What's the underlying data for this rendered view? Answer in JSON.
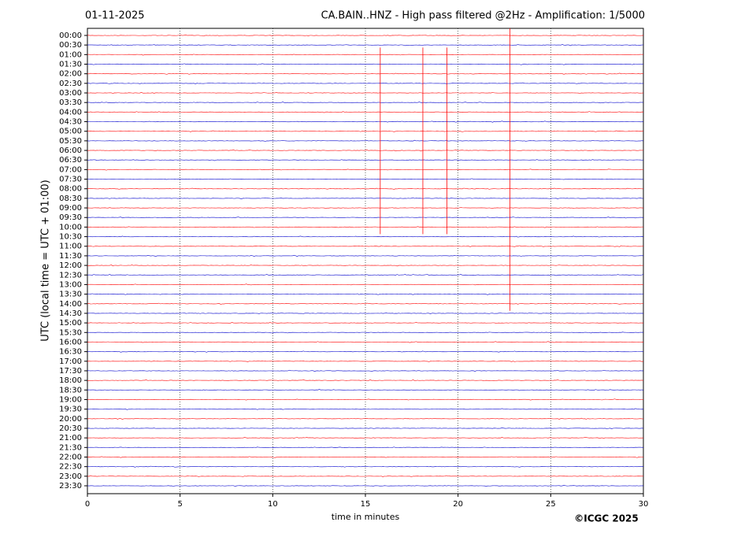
{
  "chart_data": {
    "type": "helicorder",
    "title": "CA.BAIN..HNZ - High pass filtered @2Hz - Amplification: 1/5000",
    "date": "01-11-2025",
    "ylabel": "UTC (local time = UTC + 01:00)",
    "xlabel": "time in minutes",
    "credit": "©ICGC 2025",
    "categories": [
      "00:00",
      "00:30",
      "01:00",
      "01:30",
      "02:00",
      "02:30",
      "03:00",
      "03:30",
      "04:00",
      "04:30",
      "05:00",
      "05:30",
      "06:00",
      "06:30",
      "07:00",
      "07:30",
      "08:00",
      "08:30",
      "09:00",
      "09:30",
      "10:00",
      "10:30",
      "11:00",
      "11:30",
      "12:00",
      "12:30",
      "13:00",
      "13:30",
      "14:00",
      "14:30",
      "15:00",
      "15:30",
      "16:00",
      "16:30",
      "17:00",
      "17:30",
      "18:00",
      "18:30",
      "19:00",
      "19:30",
      "20:00",
      "20:30",
      "21:00",
      "21:30",
      "22:00",
      "22:30",
      "23:00",
      "23:30"
    ],
    "colors": [
      "#ff0000",
      "#0000cc"
    ],
    "xlim": [
      0,
      30
    ],
    "xticks": [
      0,
      5,
      10,
      15,
      20,
      25,
      30
    ],
    "grid": true,
    "events": [
      {
        "x": 15.8,
        "from": "01:00",
        "to": "10:00"
      },
      {
        "x": 18.1,
        "from": "01:00",
        "to": "10:00"
      },
      {
        "x": 19.4,
        "from": "01:00",
        "to": "10:00"
      },
      {
        "x": 22.8,
        "from": "00:00",
        "to": "14:00"
      }
    ]
  }
}
